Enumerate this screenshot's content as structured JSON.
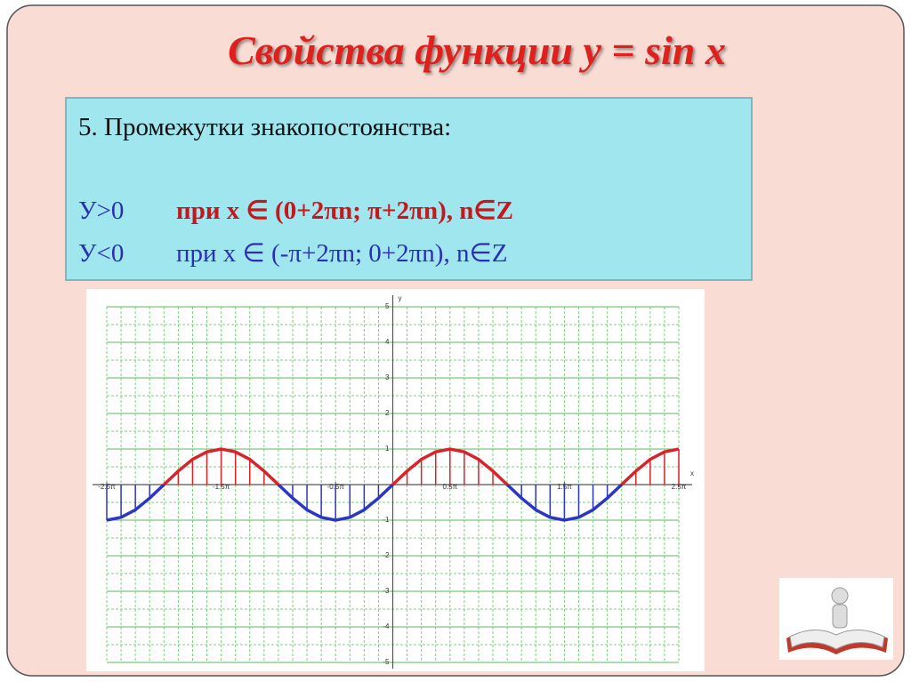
{
  "title": "Свойства функции y = sin x",
  "box": {
    "heading": "5. Промежутки знакопостоянства:",
    "positive": {
      "sign": "У>0",
      "condition": "при  x ∈ (0+2πn; π+2πn), n∈Z"
    },
    "negative": {
      "sign": "У<0",
      "condition": "при  x ∈ (-π+2πn; 0+2πn), n∈Z"
    }
  },
  "chart_data": {
    "type": "line",
    "xlabel": "x",
    "ylabel": "y",
    "colors": {
      "positive": "#d9232b",
      "negative": "#2b36c6"
    },
    "x": [
      -2.5,
      -2.375,
      -2.25,
      -2.125,
      -2,
      -1.875,
      -1.75,
      -1.625,
      -1.5,
      -1.375,
      -1.25,
      -1.125,
      -1,
      -0.875,
      -0.75,
      -0.625,
      -0.5,
      -0.375,
      -0.25,
      -0.125,
      0,
      0.125,
      0.25,
      0.375,
      0.5,
      0.625,
      0.75,
      0.875,
      1,
      1.125,
      1.25,
      1.375,
      1.5,
      1.625,
      1.75,
      1.875,
      2,
      2.125,
      2.25,
      2.375,
      2.5
    ],
    "values": [
      -1,
      -0.92,
      -0.71,
      -0.38,
      0,
      0.38,
      0.71,
      0.92,
      1,
      0.92,
      0.71,
      0.38,
      0,
      -0.38,
      -0.71,
      -0.92,
      -1,
      -0.92,
      -0.71,
      -0.38,
      0,
      0.38,
      0.71,
      0.92,
      1,
      0.92,
      0.71,
      0.38,
      0,
      -0.38,
      -0.71,
      -0.92,
      -1,
      -0.92,
      -0.71,
      -0.38,
      0,
      0.38,
      0.71,
      0.92,
      1
    ],
    "xlim": [
      -2.5,
      2.5
    ],
    "ylim": [
      -5,
      5
    ],
    "xticks": [
      {
        "value": -2.5,
        "label": "-2.5π"
      },
      {
        "value": -1.5,
        "label": "-1.5π"
      },
      {
        "value": -0.5,
        "label": "-0.5π"
      },
      {
        "value": 0.5,
        "label": "0.5π"
      },
      {
        "value": 1.5,
        "label": "1.5π"
      },
      {
        "value": 2.5,
        "label": "2.5π"
      }
    ],
    "yticks": [
      5,
      4,
      3,
      2,
      1,
      -1,
      -2,
      -3,
      -4,
      -5
    ],
    "grid": true
  }
}
